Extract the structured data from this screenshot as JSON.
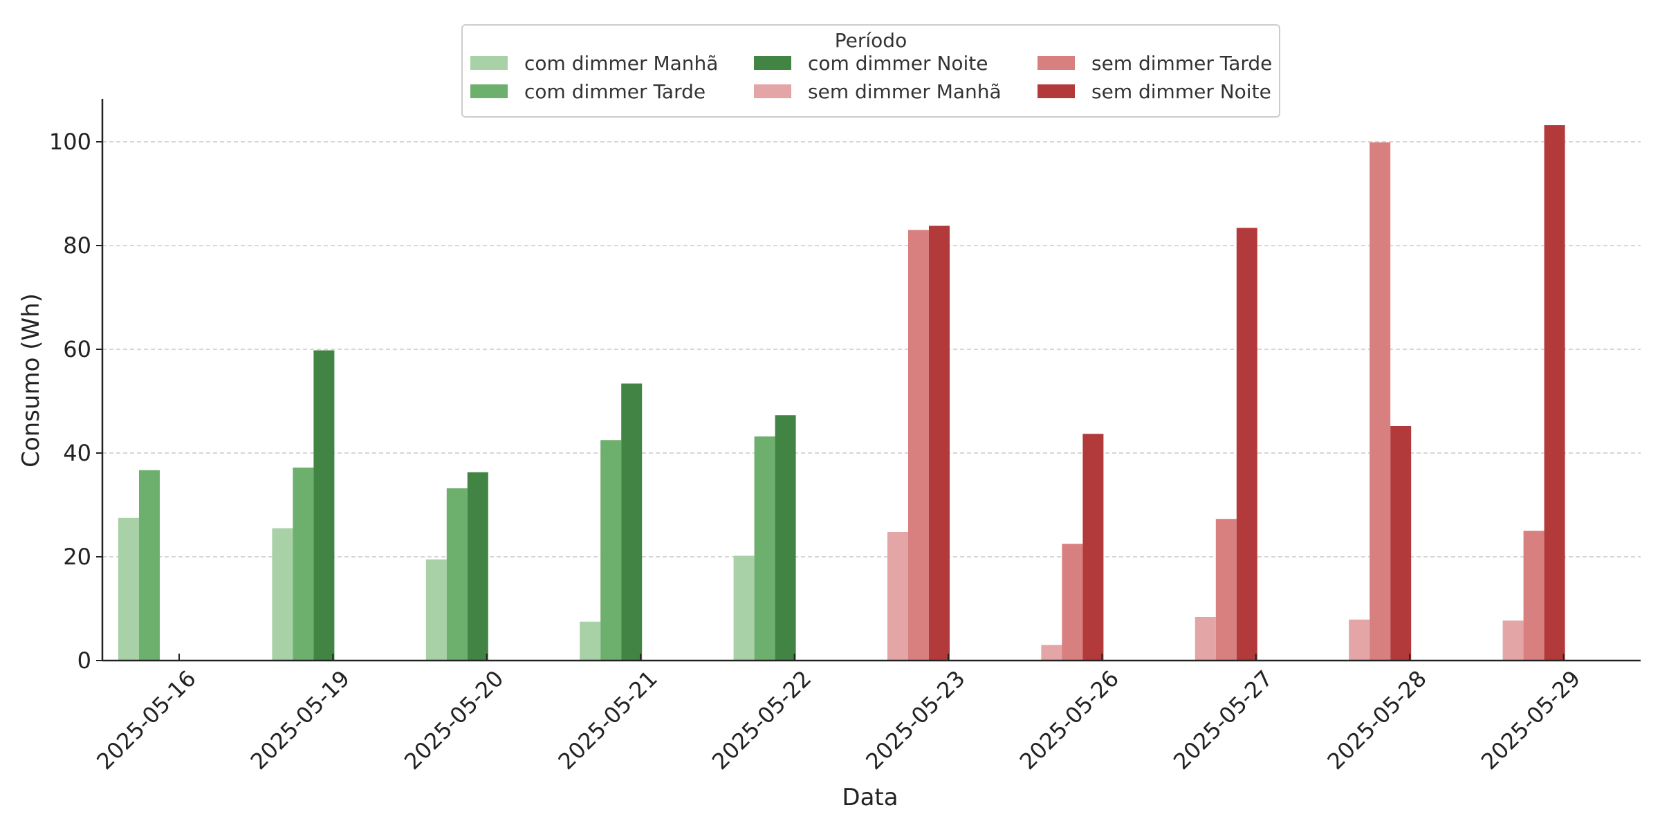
{
  "chart_data": {
    "type": "bar",
    "title": "",
    "xlabel": "Data",
    "ylabel": "Consumo (Wh)",
    "ylim": [
      0,
      108
    ],
    "yticks": [
      0,
      20,
      40,
      60,
      80,
      100
    ],
    "grid": "horizontal dashed",
    "legend_title": "Período",
    "legend_placement": "top-center",
    "categories": [
      "2025-05-16",
      "2025-05-19",
      "2025-05-20",
      "2025-05-21",
      "2025-05-22",
      "2025-05-23",
      "2025-05-26",
      "2025-05-27",
      "2025-05-28",
      "2025-05-29"
    ],
    "series": [
      {
        "name": "com dimmer Manhã",
        "color": "#a8d1a8",
        "values": [
          27.5,
          25.5,
          19.5,
          7.5,
          20.2,
          null,
          null,
          null,
          null,
          null
        ]
      },
      {
        "name": "com dimmer Tarde",
        "color": "#6daf6d",
        "values": [
          36.7,
          37.2,
          33.2,
          42.5,
          43.2,
          null,
          null,
          null,
          null,
          null
        ]
      },
      {
        "name": "com dimmer Noite",
        "color": "#418444",
        "values": [
          null,
          59.8,
          36.3,
          53.4,
          47.3,
          null,
          null,
          null,
          null,
          null
        ]
      },
      {
        "name": "sem dimmer Manhã",
        "color": "#e3a5a5",
        "values": [
          null,
          null,
          null,
          null,
          null,
          24.8,
          3.0,
          8.4,
          7.9,
          7.7
        ]
      },
      {
        "name": "sem dimmer Tarde",
        "color": "#d87f7f",
        "values": [
          null,
          null,
          null,
          null,
          null,
          83.0,
          22.5,
          27.3,
          99.9,
          25.0
        ]
      },
      {
        "name": "sem dimmer Noite",
        "color": "#b33a3a",
        "values": [
          null,
          null,
          null,
          null,
          null,
          83.8,
          43.7,
          83.4,
          45.2,
          103.2
        ]
      }
    ]
  }
}
